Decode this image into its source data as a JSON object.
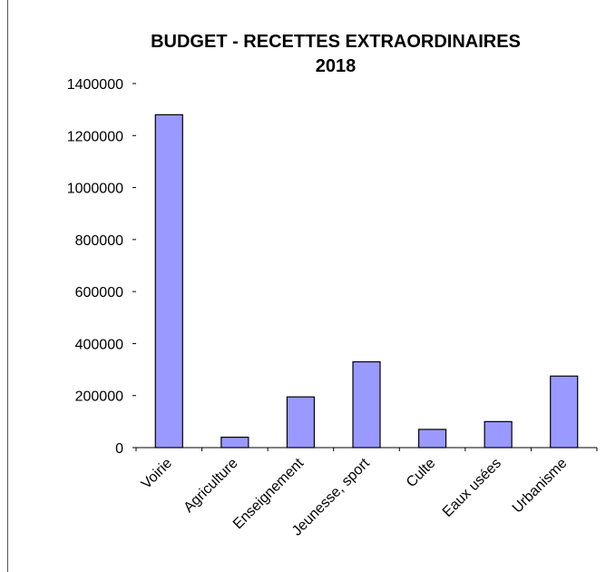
{
  "chart_data": {
    "type": "bar",
    "title_lines": [
      "BUDGET - RECETTES EXTRAORDINAIRES",
      "2018"
    ],
    "categories": [
      "Voirie",
      "Agriculture",
      "Enseignement",
      "Jeunesse, sport",
      "Culte",
      "Eaux usées",
      "Urbanisme"
    ],
    "values": [
      1280000,
      40000,
      195000,
      330000,
      70000,
      100000,
      275000
    ],
    "ylim": [
      0,
      1400000
    ],
    "yticks": [
      "0",
      "200000",
      "400000",
      "600000",
      "800000",
      "1000000",
      "1200000",
      "1400000"
    ],
    "grid": false,
    "legend": "none",
    "colors": {
      "bar_fill": "#9999ff",
      "bar_stroke": "#000000",
      "axis": "#000000"
    }
  }
}
